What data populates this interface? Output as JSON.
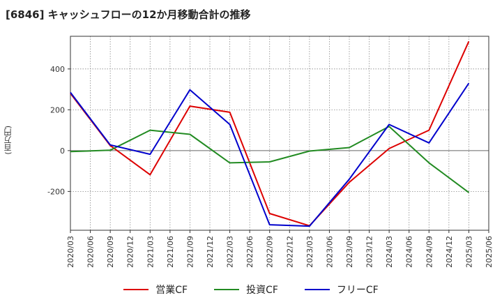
{
  "chart_data": {
    "type": "line",
    "title": "[6846]  キャッシュフローの12か月移動合計の推移",
    "ylabel": "(百万円)",
    "xlabel": "",
    "ylim": [
      -390,
      560
    ],
    "yticks": [
      -200,
      0,
      200,
      400
    ],
    "ytick_labels": [
      "-200",
      "0",
      "200",
      "400"
    ],
    "categories": [
      "2020/03",
      "2020/06",
      "2020/09",
      "2020/12",
      "2021/03",
      "2021/06",
      "2021/09",
      "2021/12",
      "2022/03",
      "2022/06",
      "2022/09",
      "2022/12",
      "2023/03",
      "2023/06",
      "2023/09",
      "2023/12",
      "2024/03",
      "2024/06",
      "2024/09",
      "2024/12",
      "2025/03",
      "2025/06"
    ],
    "grid": true,
    "legend_position": "bottom-center",
    "series": [
      {
        "name": "営業CF",
        "color": "#dd0000",
        "points": [
          [
            "2020/03",
            280
          ],
          [
            "2020/09",
            25
          ],
          [
            "2021/03",
            -118
          ],
          [
            "2021/09",
            218
          ],
          [
            "2022/03",
            188
          ],
          [
            "2022/09",
            -308
          ],
          [
            "2023/03",
            -368
          ],
          [
            "2023/09",
            -155
          ],
          [
            "2024/03",
            10
          ],
          [
            "2024/09",
            100
          ],
          [
            "2025/03",
            535
          ]
        ]
      },
      {
        "name": "投資CF",
        "color": "#228b22",
        "points": [
          [
            "2020/03",
            -5
          ],
          [
            "2020/09",
            2
          ],
          [
            "2021/03",
            100
          ],
          [
            "2021/09",
            80
          ],
          [
            "2022/03",
            -60
          ],
          [
            "2022/09",
            -55
          ],
          [
            "2023/03",
            -2
          ],
          [
            "2023/09",
            15
          ],
          [
            "2024/03",
            118
          ],
          [
            "2024/09",
            -60
          ],
          [
            "2025/03",
            -205
          ]
        ]
      },
      {
        "name": "フリーCF",
        "color": "#0000cc",
        "points": [
          [
            "2020/03",
            285
          ],
          [
            "2020/09",
            28
          ],
          [
            "2021/03",
            -18
          ],
          [
            "2021/09",
            298
          ],
          [
            "2022/03",
            128
          ],
          [
            "2022/09",
            -363
          ],
          [
            "2023/03",
            -370
          ],
          [
            "2023/09",
            -140
          ],
          [
            "2024/03",
            128
          ],
          [
            "2024/09",
            38
          ],
          [
            "2025/03",
            330
          ]
        ]
      }
    ]
  }
}
